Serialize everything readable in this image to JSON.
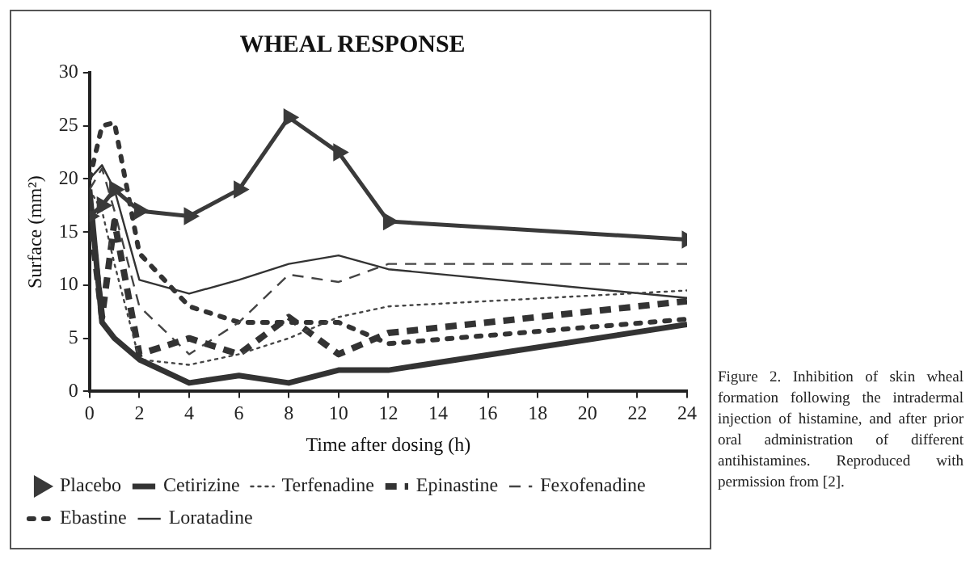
{
  "chart_data": {
    "type": "line",
    "title": "WHEAL RESPONSE",
    "xlabel": "Time after dosing (h)",
    "ylabel": "Surface (mm²)",
    "annotations": [
      "Figure 2. Inhibition of skin wheal formation following the intradermal injection of histamine, and after prior oral administration of different antihistamines. Reproduced with permission from [2]."
    ],
    "x": [
      0,
      0.5,
      1,
      2,
      4,
      6,
      8,
      10,
      12,
      24
    ],
    "xlim": [
      0,
      24
    ],
    "xticks": [
      0,
      2,
      4,
      6,
      8,
      10,
      12,
      14,
      16,
      18,
      20,
      22,
      24
    ],
    "ylim": [
      0,
      30
    ],
    "yticks": [
      0,
      5,
      10,
      15,
      20,
      25,
      30
    ],
    "grid": false,
    "legend": "bottom",
    "series": [
      {
        "name": "Placebo",
        "color": "#3a3a3a",
        "line_style": "solid",
        "marker": "triangle",
        "values": [
          16.5,
          17.5,
          19,
          17,
          16.5,
          19,
          25.8,
          22.5,
          16,
          14.3
        ]
      },
      {
        "name": "Cetirizine",
        "color": "#333333",
        "line_style": "solid",
        "marker": "none",
        "values": [
          19,
          6.5,
          5,
          3,
          0.8,
          1.5,
          0.8,
          2,
          2,
          6.3
        ]
      },
      {
        "name": "Terfenadine",
        "color": "#444444",
        "line_style": "dotted",
        "marker": "none",
        "values": [
          19,
          17,
          12,
          3,
          2.5,
          3.5,
          5,
          7,
          8,
          9.5
        ]
      },
      {
        "name": "Epinastine",
        "color": "#333333",
        "line_style": "dashed",
        "marker": "none",
        "values": [
          17,
          7,
          16,
          3.5,
          5,
          3.5,
          7,
          3.5,
          5.5,
          8.5
        ]
      },
      {
        "name": "Fexofenadine",
        "color": "#444444",
        "line_style": "dashed",
        "marker": "none",
        "values": [
          19,
          21,
          17,
          8,
          3.5,
          6.5,
          11,
          10.3,
          12,
          12
        ]
      },
      {
        "name": "Ebastine",
        "color": "#333333",
        "line_style": "dotted",
        "marker": "none",
        "values": [
          20,
          25,
          25.3,
          13,
          8,
          6.5,
          6.5,
          6.5,
          4.5,
          6.8
        ]
      },
      {
        "name": "Loratadine",
        "color": "#333333",
        "line_style": "solid",
        "marker": "none",
        "values": [
          20,
          21.3,
          19,
          10.5,
          9.2,
          10.5,
          12,
          12.8,
          11.5,
          8.8
        ]
      }
    ]
  }
}
